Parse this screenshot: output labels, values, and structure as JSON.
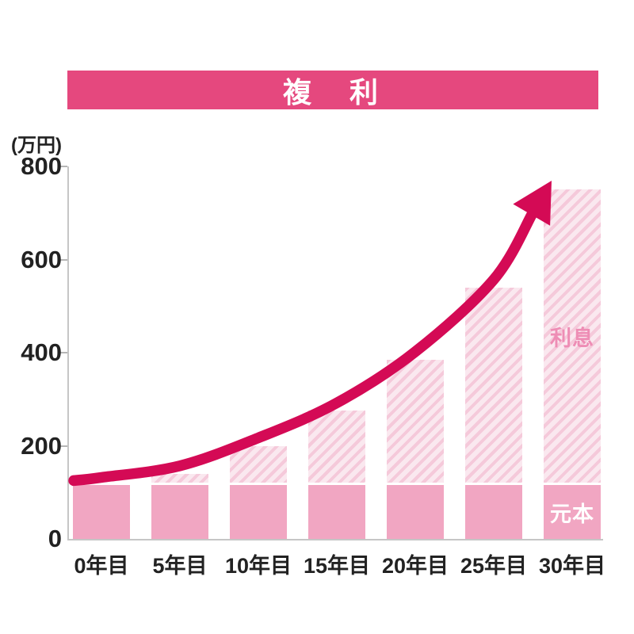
{
  "header": {
    "title": "複　利"
  },
  "y_axis": {
    "unit_label": "(万円)",
    "tick_labels": [
      "800",
      "600",
      "400",
      "200",
      "0"
    ]
  },
  "x_axis": {
    "labels": [
      "0年目",
      "5年目",
      "10年目",
      "15年目",
      "20年目",
      "25年目",
      "30年目"
    ]
  },
  "annotations": {
    "interest_label": "利息",
    "principal_label": "元本"
  },
  "colors": {
    "banner": "#e5487e",
    "curve": "#d40a55",
    "bar_solid": "#f1a6c2",
    "hatch_stripe": "#f5c9da",
    "hatch_bg": "#fae8ef",
    "interest_text": "#ee8db5",
    "principal_text": "#ffffff",
    "axis": "#c6c6c6",
    "tick": "#b5b5b5",
    "text": "#222222",
    "background": "#ffffff"
  },
  "chart_data": {
    "type": "bar",
    "title": "複利",
    "categories": [
      "0年目",
      "5年目",
      "10年目",
      "15年目",
      "20年目",
      "25年目",
      "30年目"
    ],
    "series": [
      {
        "name": "元本",
        "values": [
          115,
          115,
          115,
          115,
          115,
          115,
          115
        ]
      },
      {
        "name": "利息",
        "values": [
          0,
          25,
          85,
          160,
          270,
          425,
          635
        ]
      }
    ],
    "totals": [
      115,
      140,
      200,
      275,
      385,
      540,
      750
    ],
    "stacked": true,
    "xlabel": "",
    "ylabel": "(万円)",
    "ylim": [
      0,
      800
    ],
    "y_ticks": [
      0,
      200,
      400,
      600,
      800
    ],
    "grid": false,
    "legend_position": "inline-on-last-bar",
    "trend_arrow": true
  }
}
